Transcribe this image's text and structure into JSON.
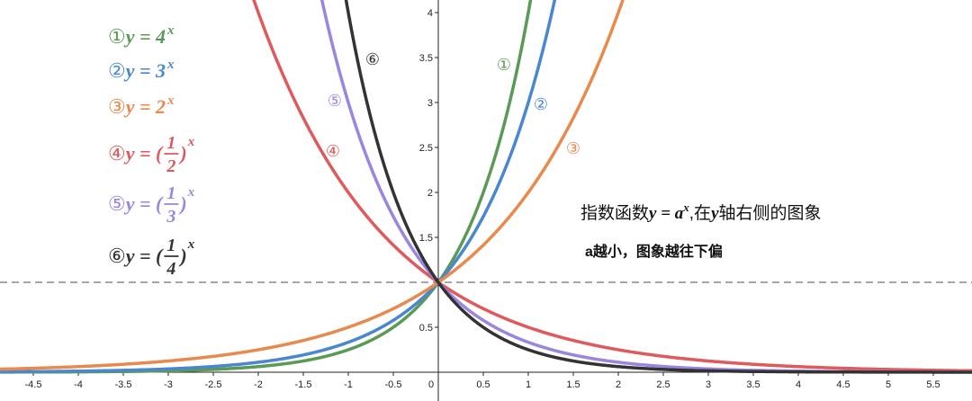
{
  "chart_data": {
    "type": "function",
    "xlim": [
      -4.87,
      5.93
    ],
    "ylim": [
      -0.32,
      4.14
    ],
    "xticks": [
      -4.5,
      -4,
      -3.5,
      -3,
      -2.5,
      -2,
      -1.5,
      -1,
      -0.5,
      0,
      0.5,
      1,
      1.5,
      2,
      2.5,
      3,
      3.5,
      4,
      4.5,
      5,
      5.5
    ],
    "yticks": [
      0.5,
      1.5,
      2,
      2.5,
      3,
      3.5,
      4
    ],
    "reference_line": 1,
    "series": [
      {
        "marker": "①",
        "label": "y = 4",
        "power": "x",
        "base": 4,
        "color": "#5a9a55"
      },
      {
        "marker": "②",
        "label": "y = 3",
        "power": "x",
        "base": 3,
        "color": "#4a87cf"
      },
      {
        "marker": "③",
        "label": "y = 2",
        "power": "x",
        "base": 2,
        "color": "#e88a4e"
      },
      {
        "marker": "④",
        "label": "y = (",
        "numerator": "1",
        "denominator": "2",
        "close": ")",
        "power": "x",
        "base": 0.5,
        "color": "#df5a5c"
      },
      {
        "marker": "⑤",
        "label": "y = (",
        "numerator": "1",
        "denominator": "3",
        "close": ")",
        "power": "x",
        "base": 0.33333,
        "color": "#9a86df"
      },
      {
        "marker": "⑥",
        "label": "y = (",
        "numerator": "1",
        "denominator": "4",
        "close": ")",
        "power": "x",
        "base": 0.25,
        "color": "#333333"
      }
    ],
    "annotation": [
      "指数函数",
      "y = a",
      "x",
      ",在",
      "y",
      "轴右侧的图象"
    ],
    "note": "a越小，图象越往下偏"
  }
}
